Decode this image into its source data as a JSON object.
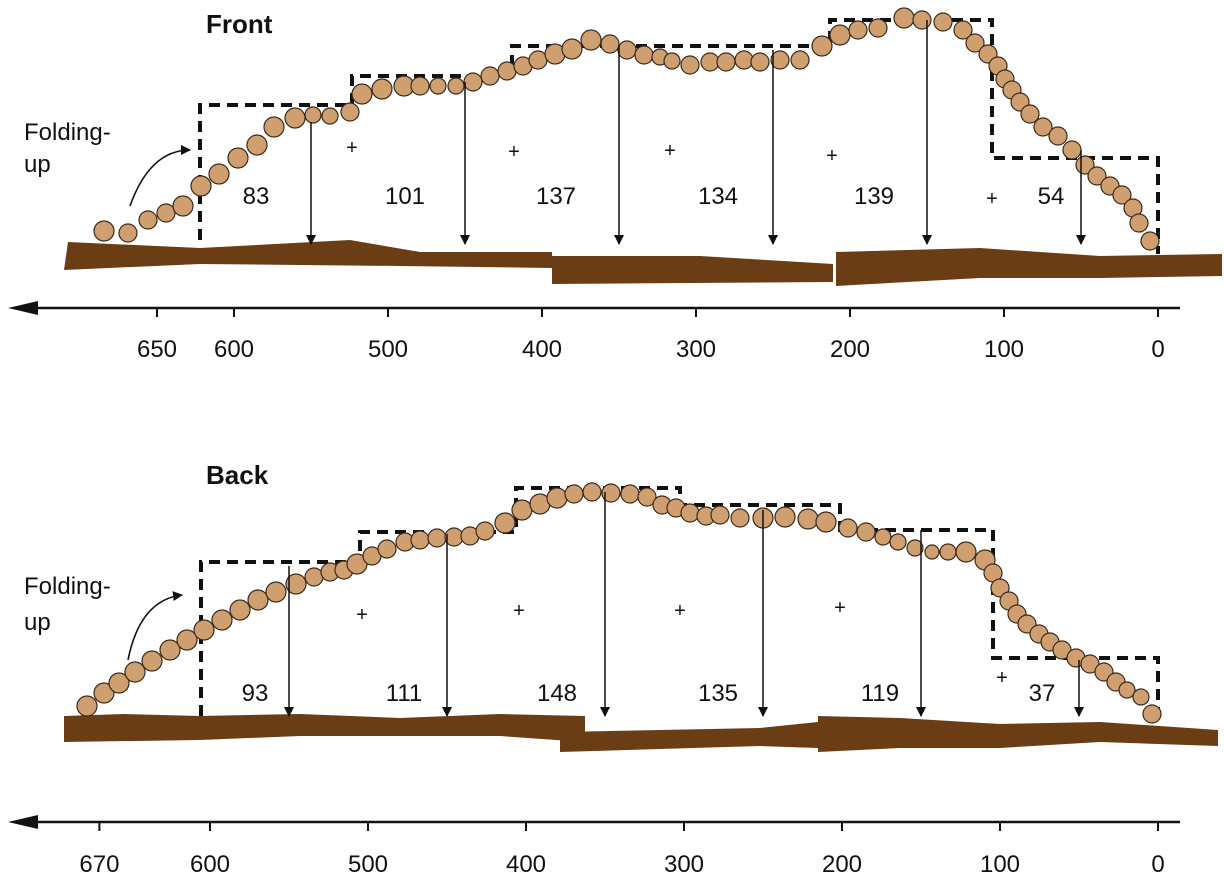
{
  "colors": {
    "stone": "#cf9f70",
    "stone_edge": "#3a2a1a",
    "base": "#6a3d14",
    "ink": "#111111"
  },
  "panels": [
    {
      "id": "front",
      "title": "Front",
      "note": [
        "Folding-",
        "up"
      ],
      "axis": {
        "ticks": [
          {
            "value": 650,
            "label": "650"
          },
          {
            "value": 600,
            "label": "600"
          },
          {
            "value": 500,
            "label": "500"
          },
          {
            "value": 400,
            "label": "400"
          },
          {
            "value": 300,
            "label": "300"
          },
          {
            "value": 200,
            "label": "200"
          },
          {
            "value": 100,
            "label": "100"
          },
          {
            "value": 0,
            "label": "0"
          }
        ]
      },
      "segments": [
        {
          "position": 550,
          "label": "83"
        },
        {
          "position": 450,
          "label": "101"
        },
        {
          "position": 350,
          "label": "137"
        },
        {
          "position": 250,
          "label": "134"
        },
        {
          "position": 150,
          "label": "139"
        },
        {
          "position": 50,
          "label": "54"
        }
      ]
    },
    {
      "id": "back",
      "title": "Back",
      "note": [
        "Folding-",
        "up"
      ],
      "axis": {
        "ticks": [
          {
            "value": 670,
            "label": "670"
          },
          {
            "value": 600,
            "label": "600"
          },
          {
            "value": 500,
            "label": "500"
          },
          {
            "value": 400,
            "label": "400"
          },
          {
            "value": 300,
            "label": "300"
          },
          {
            "value": 200,
            "label": "200"
          },
          {
            "value": 100,
            "label": "100"
          },
          {
            "value": 0,
            "label": "0"
          }
        ]
      },
      "segments": [
        {
          "position": 550,
          "label": "93"
        },
        {
          "position": 450,
          "label": "111"
        },
        {
          "position": 350,
          "label": "148"
        },
        {
          "position": 250,
          "label": "135"
        },
        {
          "position": 150,
          "label": "119"
        },
        {
          "position": 50,
          "label": "37"
        }
      ]
    }
  ]
}
